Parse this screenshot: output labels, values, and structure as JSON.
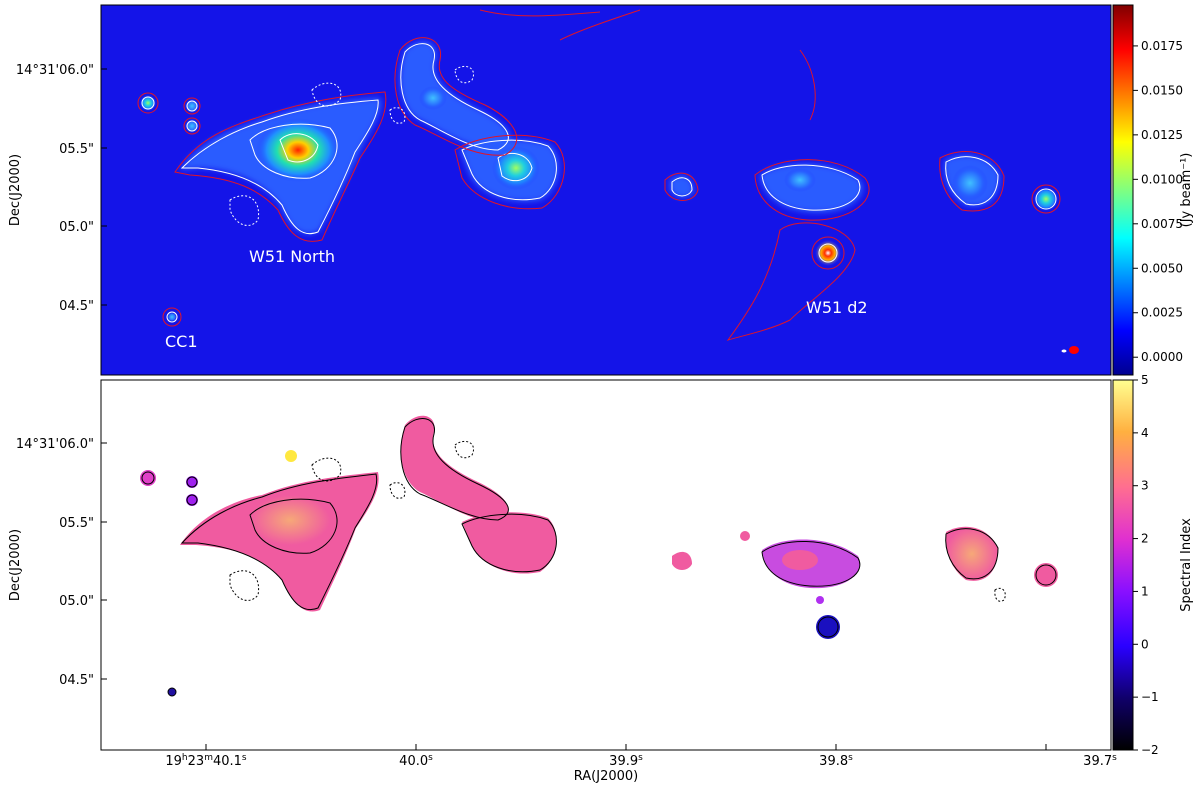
{
  "chart_data": [
    {
      "type": "heatmap",
      "panel": "top",
      "ylabel": "Dec(J2000)",
      "y_ticks": [
        "14°31'06.0\"",
        "05.5\"",
        "05.0\"",
        "04.5\""
      ],
      "colorbar": {
        "label": "(Jy beam⁻¹)",
        "range": [
          -0.001,
          0.0198
        ],
        "ticks": [
          "0.0000",
          "0.0025",
          "0.0050",
          "0.0075",
          "0.0100",
          "0.0125",
          "0.0150",
          "0.0175"
        ],
        "colormap": "jet"
      },
      "annotations": [
        "W51 North",
        "W51 d2",
        "CC1"
      ],
      "contour_colors": {
        "white": "#ffffff",
        "red": "#e0142a",
        "black": "#000000"
      },
      "background_color": "#1414e8"
    },
    {
      "type": "heatmap",
      "panel": "bottom",
      "xlabel": "RA(J2000)",
      "ylabel": "Dec(J2000)",
      "x_ticks": [
        "19h23m40.1s",
        "40.0s",
        "39.9s",
        "39.8s",
        "39.7s"
      ],
      "y_ticks": [
        "14°31'06.0\"",
        "05.5\"",
        "05.0\"",
        "04.5\""
      ],
      "colorbar": {
        "label": "Spectral Index",
        "range": [
          -2,
          5
        ],
        "ticks": [
          "−2",
          "−1",
          "0",
          "1",
          "2",
          "3",
          "4",
          "5"
        ],
        "colormap": "gnuplot2"
      }
    }
  ]
}
